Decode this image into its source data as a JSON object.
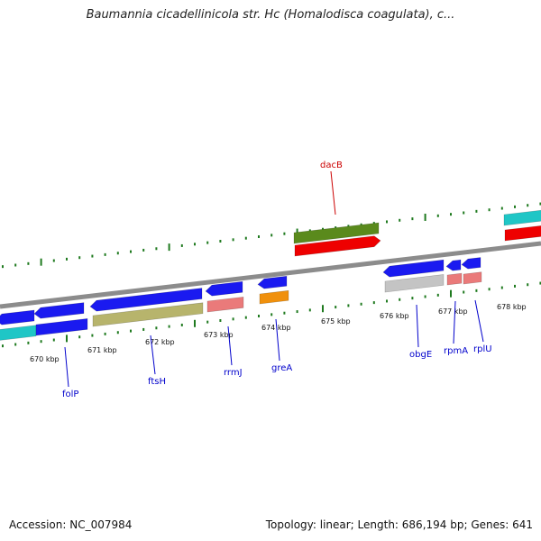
{
  "title": "Baumannia cicadellinicola str. Hc (Homalodisca coagulata), c...",
  "footer": {
    "accession": "Accession: NC_007984",
    "summary": "Topology: linear; Length: 686,194 bp; Genes: 641"
  },
  "colors": {
    "backbone": "#8c8c8c",
    "tick": "#1f7a1f",
    "gene_label_blue": "#0000cc",
    "gene_label_red": "#cc0000",
    "blue": "#1a1af0",
    "cyan": "#1fc6c6",
    "olive": "#b7b46c",
    "pink": "#ea7a7a",
    "orange": "#f0900c",
    "darkgreen": "#5a8a1c",
    "red": "#ee0000",
    "gray": "#c4c4c4"
  },
  "kbp_labels": [
    "670 kbp",
    "671 kbp",
    "672 kbp",
    "673 kbp",
    "674 kbp",
    "675 kbp",
    "676 kbp",
    "677 kbp",
    "678 kbp"
  ],
  "gene_labels": [
    {
      "name": "folP",
      "color": "blue"
    },
    {
      "name": "ftsH",
      "color": "blue"
    },
    {
      "name": "rrmJ",
      "color": "blue"
    },
    {
      "name": "greA",
      "color": "blue"
    },
    {
      "name": "dacB",
      "color": "red"
    },
    {
      "name": "obgE",
      "color": "blue"
    },
    {
      "name": "rpmA",
      "color": "blue"
    },
    {
      "name": "rplU",
      "color": "blue"
    }
  ]
}
